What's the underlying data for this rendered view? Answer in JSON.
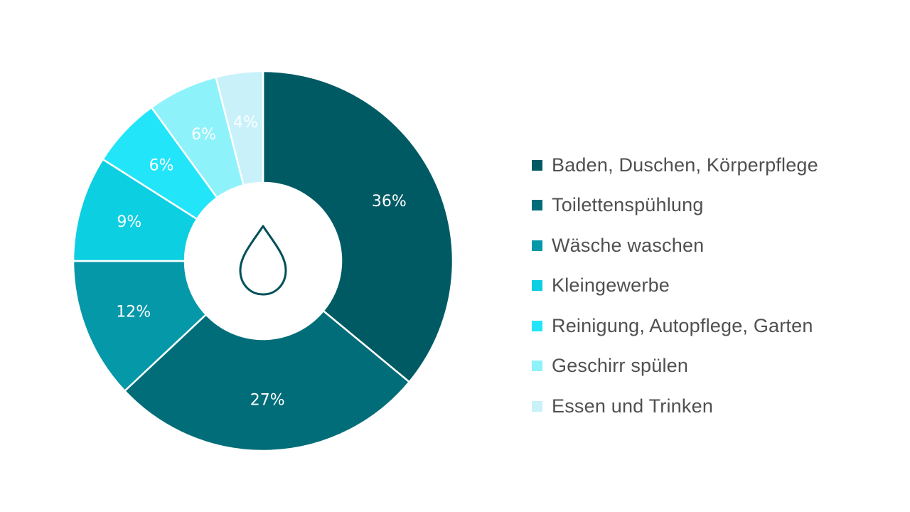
{
  "chart_data": {
    "type": "pie",
    "variant": "donut",
    "legend_position": "right",
    "center_icon": "water-drop-icon",
    "categories": [
      "Baden, Duschen, Körperpflege",
      "Toilettenspühlung",
      "Wäsche waschen",
      "Kleingewerbe",
      "Reinigung, Autopflege, Garten",
      "Geschirr spülen",
      "Essen und Trinken"
    ],
    "values": [
      36,
      27,
      12,
      9,
      6,
      6,
      4
    ],
    "labels": [
      "36%",
      "27%",
      "12%",
      "9%",
      "6%",
      "6%",
      "4%"
    ],
    "colors": [
      "#005a64",
      "#006d78",
      "#0598a8",
      "#0ccfe2",
      "#22e5fa",
      "#8ef2fb",
      "#c8f1fa"
    ]
  }
}
